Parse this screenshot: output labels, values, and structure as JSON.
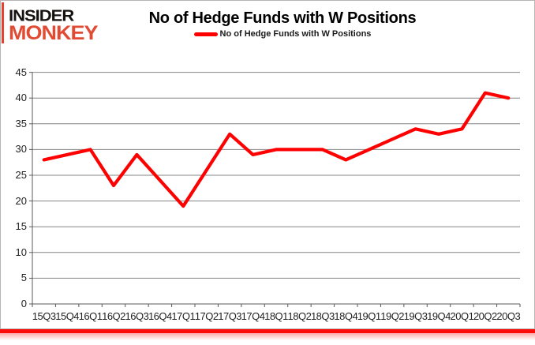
{
  "logo": {
    "line1": "INSIDER",
    "line2": "MONKEY"
  },
  "header": {
    "title": "No of Hedge Funds with W Positions"
  },
  "legend": {
    "label": "No of Hedge Funds with W Positions",
    "marker_color": "#ff0000"
  },
  "chart_data": {
    "type": "line",
    "title": "No of Hedge Funds with W Positions",
    "categories": [
      "15Q3",
      "15Q4",
      "16Q1",
      "16Q2",
      "16Q3",
      "16Q4",
      "17Q1",
      "17Q2",
      "17Q3",
      "17Q4",
      "18Q1",
      "18Q2",
      "18Q3",
      "18Q4",
      "19Q1",
      "19Q2",
      "19Q3",
      "19Q4",
      "20Q1",
      "20Q2",
      "20Q3"
    ],
    "series": [
      {
        "name": "No of Hedge Funds with W Positions",
        "color": "#ff0000",
        "values": [
          28,
          29,
          30,
          23,
          29,
          24,
          19,
          26,
          33,
          29,
          30,
          30,
          30,
          28,
          30,
          32,
          34,
          33,
          34,
          41,
          40
        ]
      }
    ],
    "xlabel": "",
    "ylabel": "",
    "ylim": [
      0,
      45
    ],
    "y_ticks": [
      0,
      5,
      10,
      15,
      20,
      25,
      30,
      35,
      40,
      45
    ],
    "grid": true,
    "legend_position": "top-center"
  },
  "colors": {
    "line": "#ff0000",
    "gridline": "#848484",
    "axis": "#595959",
    "logo_black": "#151210",
    "logo_red": "#e14b33",
    "bottom_border": "#fb0d09"
  }
}
